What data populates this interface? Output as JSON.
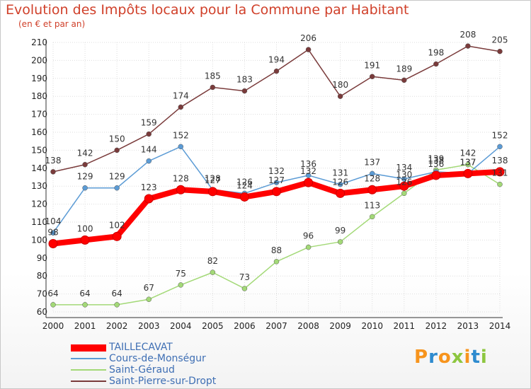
{
  "header": {
    "title": "Evolution des Impôts locaux pour la Commune par Habitant",
    "subtitle": "(en € et par an)"
  },
  "brand": {
    "name": "Proxiti",
    "letters": [
      "P",
      "r",
      "o",
      "x",
      "i",
      "t",
      "i"
    ],
    "colors": [
      "#f7941d",
      "#2e8bcf",
      "#f7941d",
      "#8dc63f",
      "#f7941d",
      "#2e8bcf",
      "#8dc63f"
    ]
  },
  "chart_data": {
    "type": "line",
    "title": "Evolution des Impôts locaux pour la Commune par Habitant",
    "subtitle": "(en € et par an)",
    "x": [
      2000,
      2001,
      2002,
      2003,
      2004,
      2005,
      2006,
      2007,
      2008,
      2009,
      2010,
      2011,
      2012,
      2013,
      2014
    ],
    "xlabel": "",
    "ylabel": "",
    "ylim": [
      60,
      210
    ],
    "yticks": [
      60,
      70,
      80,
      90,
      100,
      110,
      120,
      130,
      140,
      150,
      160,
      170,
      180,
      190,
      200,
      210
    ],
    "grid": true,
    "legend_position": "bottom-left",
    "series": [
      {
        "name": "TAILLECAVAT",
        "color": "#ff0000",
        "values": [
          98,
          100,
          102,
          123,
          128,
          127,
          124,
          127,
          132,
          126,
          128,
          130,
          136,
          137,
          138
        ],
        "labels": [
          "98",
          "100",
          "102",
          "123",
          "128",
          "127",
          "124",
          "127",
          "132",
          "126",
          "128",
          "130",
          "136",
          "137",
          "138"
        ]
      },
      {
        "name": "Cours-de-Monségur",
        "color": "#5b9bd5",
        "values": [
          104,
          129,
          129,
          144,
          152,
          128,
          126,
          132,
          136,
          131,
          137,
          134,
          138,
          137,
          152
        ],
        "labels": [
          "104",
          "129",
          "129",
          "144",
          "152",
          "128",
          "126",
          "132",
          "136",
          "131",
          "137",
          "134",
          "138",
          "137",
          "152"
        ]
      },
      {
        "name": "Saint-Géraud",
        "color": "#a3d977",
        "values": [
          64,
          64,
          64,
          67,
          75,
          82,
          73,
          88,
          96,
          99,
          113,
          126,
          139,
          142,
          131
        ],
        "labels": [
          "64",
          "64",
          "64",
          "67",
          "75",
          "82",
          "73",
          "88",
          "96",
          "99",
          "113",
          "126",
          "139",
          "142",
          "131"
        ]
      },
      {
        "name": "Saint-Pierre-sur-Dropt",
        "color": "#7a3b3b",
        "values": [
          138,
          142,
          150,
          159,
          174,
          185,
          183,
          194,
          206,
          180,
          191,
          189,
          198,
          208,
          205
        ],
        "labels": [
          "138",
          "142",
          "150",
          "159",
          "174",
          "185",
          "183",
          "194",
          "206",
          "180",
          "191",
          "189",
          "198",
          "208",
          "205"
        ]
      }
    ]
  }
}
